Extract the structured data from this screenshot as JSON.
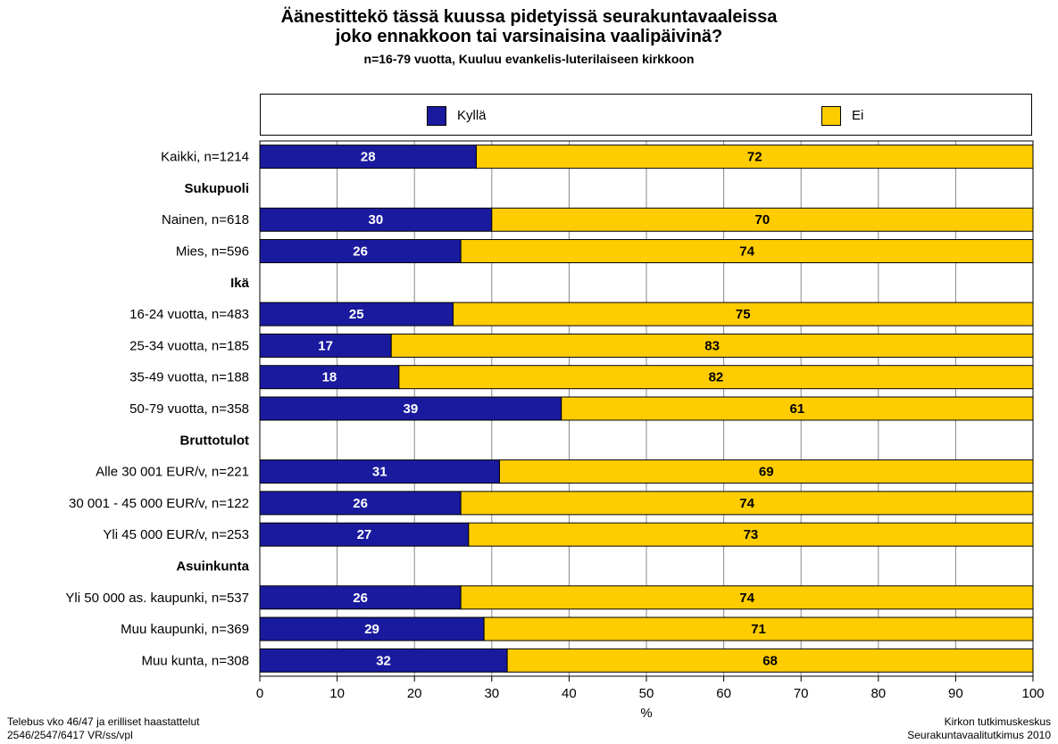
{
  "chart_data": {
    "type": "bar",
    "stacked": true,
    "orientation": "horizontal",
    "title_line1": "Äänestittekö tässä kuussa pidetyissä seurakuntavaaleissa",
    "title_line2": "joko ennakkoon tai varsinaisina vaalipäivinä?",
    "subtitle": "n=16-79 vuotta, Kuuluu evankelis-luterilaiseen kirkkoon",
    "xlabel": "%",
    "xlim": [
      0,
      100
    ],
    "x_ticks": [
      "0",
      "10",
      "20",
      "30",
      "40",
      "50",
      "60",
      "70",
      "80",
      "90",
      "100"
    ],
    "grid": true,
    "legend_position": "top",
    "series": [
      {
        "name": "Kyllä",
        "color": "#1a1a9e",
        "label_color": "#ffffff"
      },
      {
        "name": "Ei",
        "color": "#ffcc00",
        "label_color": "#000000"
      }
    ],
    "rows": [
      {
        "label": "Kaikki, n=1214",
        "values": [
          28,
          72
        ]
      },
      {
        "label": "Sukupuoli",
        "header": true
      },
      {
        "label": "Nainen, n=618",
        "values": [
          30,
          70
        ]
      },
      {
        "label": "Mies, n=596",
        "values": [
          26,
          74
        ]
      },
      {
        "label": "Ikä",
        "header": true
      },
      {
        "label": "16-24 vuotta, n=483",
        "values": [
          25,
          75
        ]
      },
      {
        "label": "25-34 vuotta, n=185",
        "values": [
          17,
          83
        ]
      },
      {
        "label": "35-49 vuotta, n=188",
        "values": [
          18,
          82
        ]
      },
      {
        "label": "50-79 vuotta, n=358",
        "values": [
          39,
          61
        ]
      },
      {
        "label": "Bruttotulot",
        "header": true
      },
      {
        "label": "Alle 30 001 EUR/v, n=221",
        "values": [
          31,
          69
        ]
      },
      {
        "label": "30 001 - 45 000 EUR/v, n=122",
        "values": [
          26,
          74
        ]
      },
      {
        "label": "Yli 45 000 EUR/v, n=253",
        "values": [
          27,
          73
        ]
      },
      {
        "label": "Asuinkunta",
        "header": true
      },
      {
        "label": "Yli 50 000 as. kaupunki, n=537",
        "values": [
          26,
          74
        ]
      },
      {
        "label": "Muu kaupunki, n=369",
        "values": [
          29,
          71
        ]
      },
      {
        "label": "Muu kunta, n=308",
        "values": [
          32,
          68
        ]
      }
    ]
  },
  "footer": {
    "left_line1": "Telebus vko 46/47 ja erilliset haastattelut",
    "left_line2": "2546/2547/6417 VR/ss/vpl",
    "right_line1": "Kirkon tutkimuskeskus",
    "right_line2": "Seurakuntavaalitutkimus 2010"
  }
}
